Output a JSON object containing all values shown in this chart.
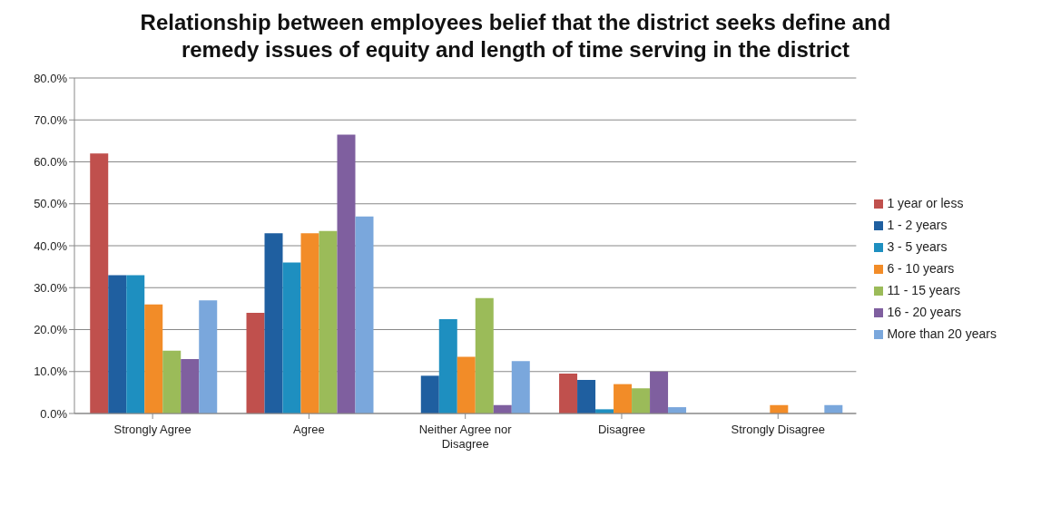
{
  "chart_data": {
    "type": "bar",
    "title": "Relationship between employees belief that the district seeks define and remedy issues of equity and length of time serving in the district",
    "categories": [
      "Strongly Agree",
      "Agree",
      "Neither Agree nor Disagree",
      "Disagree",
      "Strongly Disagree"
    ],
    "series": [
      {
        "name": "1 year or less",
        "color": "#c0504d",
        "values": [
          62,
          24,
          0,
          9.5,
          0
        ]
      },
      {
        "name": "1 - 2 years",
        "color": "#1f5fa0",
        "values": [
          33,
          43,
          9,
          8,
          0
        ]
      },
      {
        "name": "3 - 5 years",
        "color": "#1e8fc0",
        "values": [
          33,
          36,
          22.5,
          1,
          0
        ]
      },
      {
        "name": "6 - 10 years",
        "color": "#f28c28",
        "values": [
          26,
          43,
          13.5,
          7,
          2
        ]
      },
      {
        "name": "11 - 15 years",
        "color": "#9bbb59",
        "values": [
          15,
          43.5,
          27.5,
          6,
          0
        ]
      },
      {
        "name": "16 - 20 years",
        "color": "#7f5f9f",
        "values": [
          13,
          66.5,
          2,
          10,
          0
        ]
      },
      {
        "name": "More than 20 years",
        "color": "#7aa7dc",
        "values": [
          27,
          47,
          12.5,
          1.5,
          2
        ]
      }
    ],
    "ylim": [
      0,
      80
    ],
    "yticks": [
      {
        "value": 0,
        "label": "0.0%"
      },
      {
        "value": 10,
        "label": "10.0%"
      },
      {
        "value": 20,
        "label": "20.0%"
      },
      {
        "value": 30,
        "label": "30.0%"
      },
      {
        "value": 40,
        "label": "40.0%"
      },
      {
        "value": 50,
        "label": "50.0%"
      },
      {
        "value": 60,
        "label": "60.0%"
      },
      {
        "value": 70,
        "label": "70.0%"
      },
      {
        "value": 80,
        "label": "80.0%"
      }
    ],
    "grid": "y",
    "legend": "right"
  }
}
